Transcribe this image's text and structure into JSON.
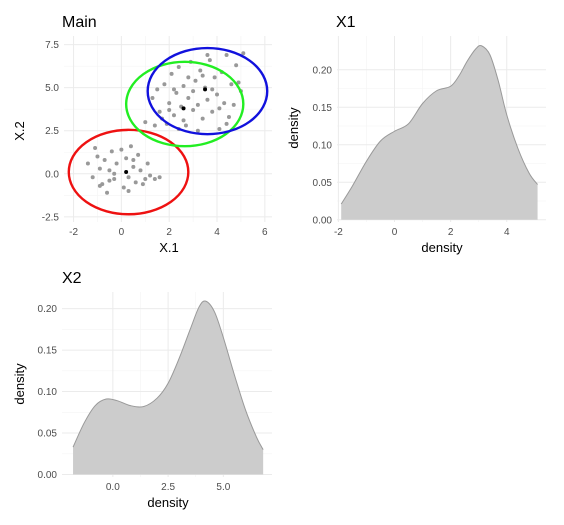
{
  "chart_data": [
    {
      "id": "main",
      "type": "scatter",
      "title": "Main",
      "xlabel": "X.1",
      "ylabel": "X.2",
      "xlim": [
        -2.4,
        6.3
      ],
      "ylim": [
        -2.8,
        8.0
      ],
      "xticks": [
        -2,
        0,
        2,
        4,
        6
      ],
      "xtick_labels": [
        "-2",
        "0",
        "2",
        "4",
        "6"
      ],
      "yticks": [
        -2.5,
        0.0,
        2.5,
        5.0,
        7.5
      ],
      "ytick_labels": [
        "-2.5",
        "0.0",
        "2.5",
        "5.0",
        "7.5"
      ],
      "grid": true,
      "point_color": "#999999",
      "points": [
        [
          -1.2,
          -0.2
        ],
        [
          -1.0,
          1.0
        ],
        [
          -0.9,
          0.3
        ],
        [
          -0.8,
          -0.6
        ],
        [
          -0.7,
          0.8
        ],
        [
          -0.6,
          -1.1
        ],
        [
          -0.5,
          0.2
        ],
        [
          -0.4,
          1.3
        ],
        [
          -0.3,
          -0.3
        ],
        [
          -0.2,
          0.6
        ],
        [
          0.0,
          1.4
        ],
        [
          0.1,
          -0.8
        ],
        [
          0.2,
          0.9
        ],
        [
          0.3,
          -0.2
        ],
        [
          0.4,
          1.6
        ],
        [
          0.5,
          0.4
        ],
        [
          0.6,
          -0.5
        ],
        [
          0.7,
          1.1
        ],
        [
          -1.1,
          1.5
        ],
        [
          0.8,
          0.2
        ],
        [
          1.0,
          -0.3
        ],
        [
          1.2,
          -0.1
        ],
        [
          1.4,
          -0.3
        ],
        [
          1.6,
          -0.2
        ],
        [
          1.1,
          0.6
        ],
        [
          -0.9,
          -0.7
        ],
        [
          0.3,
          -1.0
        ],
        [
          -0.5,
          -0.4
        ],
        [
          -1.4,
          0.6
        ],
        [
          0.9,
          -0.6
        ],
        [
          -0.3,
          0.0
        ],
        [
          0.5,
          0.8
        ],
        [
          1.0,
          3.0
        ],
        [
          1.3,
          4.4
        ],
        [
          1.5,
          4.9
        ],
        [
          1.6,
          3.6
        ],
        [
          1.8,
          5.2
        ],
        [
          1.9,
          2.9
        ],
        [
          2.0,
          4.1
        ],
        [
          2.1,
          5.8
        ],
        [
          2.2,
          3.4
        ],
        [
          2.3,
          4.7
        ],
        [
          2.4,
          6.2
        ],
        [
          2.5,
          3.9
        ],
        [
          2.6,
          5.1
        ],
        [
          2.7,
          2.8
        ],
        [
          2.8,
          4.4
        ],
        [
          2.9,
          6.5
        ],
        [
          3.0,
          3.7
        ],
        [
          3.1,
          5.4
        ],
        [
          3.2,
          4.0
        ],
        [
          3.3,
          6.0
        ],
        [
          3.4,
          3.2
        ],
        [
          3.5,
          5.0
        ],
        [
          3.6,
          4.3
        ],
        [
          3.7,
          6.6
        ],
        [
          3.8,
          3.6
        ],
        [
          3.9,
          5.6
        ],
        [
          4.0,
          4.6
        ],
        [
          4.1,
          2.6
        ],
        [
          4.2,
          5.9
        ],
        [
          4.3,
          4.1
        ],
        [
          4.4,
          6.9
        ],
        [
          4.5,
          3.3
        ],
        [
          4.6,
          5.2
        ],
        [
          4.7,
          4.0
        ],
        [
          4.8,
          6.3
        ],
        [
          5.0,
          4.8
        ],
        [
          5.1,
          7.0
        ],
        [
          1.7,
          3.2
        ],
        [
          2.2,
          4.9
        ],
        [
          2.6,
          3.1
        ],
        [
          3.0,
          4.8
        ],
        [
          3.4,
          5.7
        ],
        [
          3.8,
          4.9
        ],
        [
          4.1,
          3.8
        ],
        [
          2.8,
          5.6
        ],
        [
          2.0,
          3.7
        ],
        [
          3.6,
          6.9
        ],
        [
          4.9,
          5.3
        ],
        [
          1.4,
          2.8
        ],
        [
          2.4,
          2.6
        ],
        [
          3.2,
          2.5
        ],
        [
          4.4,
          2.9
        ]
      ],
      "centers": [
        {
          "x": 0.2,
          "y": 0.1,
          "color": "#000000"
        },
        {
          "x": 2.6,
          "y": 3.8,
          "color": "#000000"
        },
        {
          "x": 3.5,
          "y": 4.9,
          "color": "#000000"
        }
      ],
      "ellipses": [
        {
          "cx": 0.3,
          "cy": 0.1,
          "rx": 2.5,
          "ry": 2.45,
          "color": "#ee1111"
        },
        {
          "cx": 2.65,
          "cy": 4.05,
          "rx": 2.45,
          "ry": 2.45,
          "color": "#22ee22"
        },
        {
          "cx": 3.6,
          "cy": 4.8,
          "rx": 2.5,
          "ry": 2.5,
          "color": "#1111dd"
        }
      ]
    },
    {
      "id": "x1",
      "type": "area",
      "title": "X1",
      "xlabel": "density",
      "ylabel": "density",
      "xlim": [
        -2.05,
        5.4
      ],
      "ylim": [
        -0.003,
        0.245
      ],
      "xticks": [
        -2,
        0,
        2,
        4
      ],
      "xtick_labels": [
        "-2",
        "0",
        "2",
        "4"
      ],
      "yticks": [
        0.0,
        0.05,
        0.1,
        0.15,
        0.2
      ],
      "ytick_labels": [
        "0.00",
        "0.05",
        "0.10",
        "0.15",
        "0.20"
      ],
      "grid": true,
      "fill": "#cccccc",
      "line": "#999999",
      "x": [
        -1.9,
        -1.5,
        -1.0,
        -0.5,
        0.0,
        0.5,
        1.0,
        1.5,
        2.0,
        2.3,
        2.6,
        2.9,
        3.1,
        3.4,
        3.7,
        4.0,
        4.4,
        4.8,
        5.1
      ],
      "y": [
        0.021,
        0.045,
        0.078,
        0.105,
        0.118,
        0.128,
        0.155,
        0.172,
        0.178,
        0.192,
        0.212,
        0.228,
        0.232,
        0.22,
        0.185,
        0.14,
        0.095,
        0.062,
        0.047
      ]
    },
    {
      "id": "x2",
      "type": "area",
      "title": "X2",
      "xlabel": "density",
      "ylabel": "density",
      "xlim": [
        -2.3,
        7.2
      ],
      "ylim": [
        -0.003,
        0.22
      ],
      "xticks": [
        0,
        2.5,
        5
      ],
      "xtick_labels": [
        "0.0",
        "2.5",
        "5.0"
      ],
      "yticks": [
        0.0,
        0.05,
        0.1,
        0.15,
        0.2
      ],
      "ytick_labels": [
        "0.00",
        "0.05",
        "0.10",
        "0.15",
        "0.20"
      ],
      "grid": true,
      "fill": "#cccccc",
      "line": "#999999",
      "x": [
        -1.8,
        -1.3,
        -0.8,
        -0.3,
        0.2,
        0.8,
        1.4,
        2.0,
        2.5,
        3.0,
        3.5,
        3.9,
        4.2,
        4.6,
        5.0,
        5.5,
        6.0,
        6.5,
        6.8
      ],
      "y": [
        0.033,
        0.062,
        0.083,
        0.091,
        0.089,
        0.083,
        0.082,
        0.092,
        0.11,
        0.14,
        0.175,
        0.202,
        0.209,
        0.196,
        0.165,
        0.12,
        0.078,
        0.045,
        0.03
      ]
    }
  ]
}
